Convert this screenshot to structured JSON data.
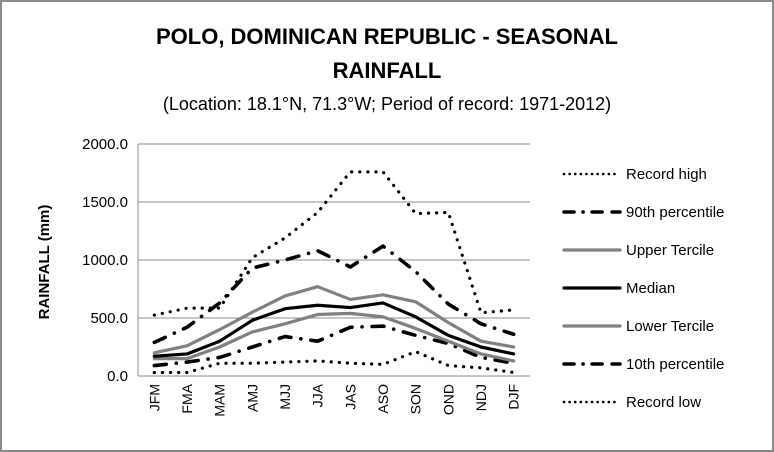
{
  "chart_data": {
    "type": "line",
    "title": "POLO, DOMINICAN REPUBLIC - SEASONAL RAINFALL",
    "title_lines": [
      "POLO, DOMINICAN REPUBLIC - SEASONAL",
      "RAINFALL"
    ],
    "subtitle": "(Location: 18.1°N, 71.3°W; Period of record: 1971-2012)",
    "xlabel": "",
    "ylabel": "RAINFALL (mm)",
    "ylim": [
      0,
      2000
    ],
    "yticks": [
      0,
      500,
      1000,
      1500,
      2000
    ],
    "ytick_labels": [
      "0.0",
      "500.0",
      "1000.0",
      "1500.0",
      "2000.0"
    ],
    "grid": true,
    "legend_position": "right",
    "categories": [
      "JFM",
      "FMA",
      "MAM",
      "AMJ",
      "MJJ",
      "JJA",
      "JAS",
      "ASO",
      "SON",
      "OND",
      "NDJ",
      "DJF"
    ],
    "series": [
      {
        "name": "Record high",
        "style": "dotted",
        "color": "#000000",
        "values": [
          525,
          585,
          585,
          1020,
          1190,
          1410,
          1760,
          1760,
          1400,
          1410,
          545,
          570
        ]
      },
      {
        "name": "90th percentile",
        "style": "dashdot",
        "color": "#000000",
        "values": [
          290,
          420,
          630,
          930,
          1000,
          1080,
          940,
          1120,
          900,
          620,
          450,
          360
        ]
      },
      {
        "name": "Upper Tercile",
        "style": "solid",
        "color": "#808080",
        "values": [
          200,
          260,
          400,
          550,
          690,
          770,
          660,
          700,
          640,
          460,
          300,
          250
        ]
      },
      {
        "name": "Median",
        "style": "solid",
        "color": "#000000",
        "values": [
          170,
          190,
          300,
          480,
          580,
          610,
          590,
          630,
          510,
          350,
          250,
          190
        ]
      },
      {
        "name": "Lower Tercile",
        "style": "solid",
        "color": "#808080",
        "values": [
          150,
          150,
          250,
          380,
          450,
          530,
          540,
          510,
          410,
          300,
          190,
          130
        ]
      },
      {
        "name": "10th percentile",
        "style": "dashdot",
        "color": "#000000",
        "values": [
          90,
          120,
          160,
          250,
          340,
          300,
          420,
          430,
          350,
          280,
          160,
          110
        ]
      },
      {
        "name": "Record low",
        "style": "dotted",
        "color": "#000000",
        "values": [
          30,
          30,
          110,
          110,
          120,
          130,
          110,
          100,
          210,
          90,
          70,
          30
        ]
      }
    ]
  }
}
